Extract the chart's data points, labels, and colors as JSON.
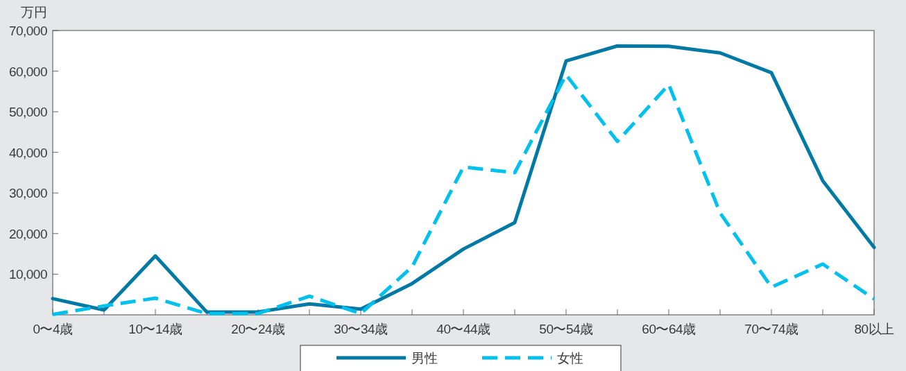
{
  "chart_data": {
    "type": "line",
    "ylabel": "万円",
    "categories": [
      "0〜4歳",
      null,
      "10〜14歳",
      null,
      "20〜24歳",
      null,
      "30〜34歳",
      null,
      "40〜44歳",
      null,
      "50〜54歳",
      null,
      "60〜64歳",
      null,
      "70〜74歳",
      null,
      "80以上"
    ],
    "series": [
      {
        "name": "男性",
        "color": "#0079a5",
        "line_style": "solid",
        "values": [
          4000,
          1200,
          14500,
          700,
          700,
          2700,
          1400,
          7700,
          16200,
          22700,
          62500,
          66200,
          66100,
          64500,
          59600,
          33000,
          16600
        ]
      },
      {
        "name": "女性",
        "color": "#00c0ed",
        "line_style": "dashed",
        "values": [
          100,
          2200,
          4100,
          300,
          300,
          4600,
          300,
          11800,
          36400,
          35000,
          59100,
          42700,
          56700,
          25100,
          6800,
          12500,
          3900
        ]
      }
    ],
    "ylim": [
      0,
      70000
    ],
    "yticks": [
      {
        "value": 10000,
        "label": "10,000"
      },
      {
        "value": 20000,
        "label": "20,000"
      },
      {
        "value": 30000,
        "label": "30,000"
      },
      {
        "value": 40000,
        "label": "40,000"
      },
      {
        "value": 50000,
        "label": "50,000"
      },
      {
        "value": 60000,
        "label": "60,000"
      },
      {
        "value": 70000,
        "label": "70,000"
      }
    ],
    "grid": false,
    "legend": "bottom"
  }
}
